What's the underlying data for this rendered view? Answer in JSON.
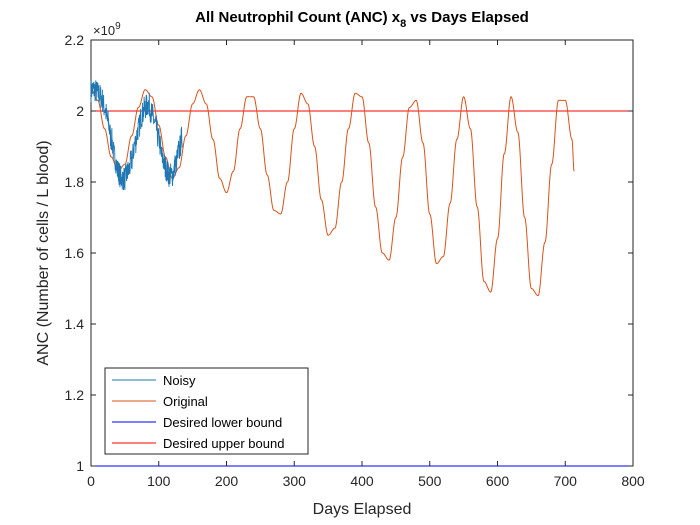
{
  "chart_data": {
    "type": "line",
    "title_main": "All Neutrophil Count (ANC) x",
    "title_sub": "8",
    "title_rest": " vs Days Elapsed",
    "xlabel": "Days Elapsed",
    "ylabel": "ANC (Number of cells / L blood)",
    "y_exponent_base": "×10",
    "y_exponent_power": "9",
    "xlim": [
      0,
      800
    ],
    "ylim": [
      1.0,
      2.2
    ],
    "xticks": [
      0,
      100,
      200,
      300,
      400,
      500,
      600,
      700,
      800
    ],
    "xtick_labels": [
      "0",
      "100",
      "200",
      "300",
      "400",
      "500",
      "600",
      "700",
      "800"
    ],
    "yticks": [
      1.0,
      1.2,
      1.4,
      1.6,
      1.8,
      2.0,
      2.2
    ],
    "ytick_labels": [
      "1",
      "1.2",
      "1.4",
      "1.6",
      "1.8",
      "2",
      "2.2"
    ],
    "grid": false,
    "legend_position": "bottom-left",
    "series": [
      {
        "name": "Noisy",
        "color": "#1f77b4",
        "x": [
          0,
          5,
          10,
          15,
          20,
          25,
          30,
          35,
          40,
          45,
          50,
          55,
          60,
          65,
          70,
          75,
          80,
          85,
          90,
          95,
          100,
          105,
          110,
          115,
          120,
          125,
          130,
          135
        ],
        "y": [
          2.06,
          2.06,
          2.05,
          2.04,
          2.01,
          1.97,
          1.92,
          1.87,
          1.83,
          1.81,
          1.81,
          1.83,
          1.86,
          1.91,
          1.95,
          1.99,
          2.01,
          2.02,
          1.99,
          1.96,
          1.92,
          1.87,
          1.84,
          1.82,
          1.82,
          1.85,
          1.89,
          1.93
        ],
        "noise": 0.035
      },
      {
        "name": "Original",
        "color": "#d95319",
        "x": [
          0,
          10,
          20,
          30,
          40,
          50,
          60,
          70,
          80,
          90,
          100,
          110,
          120,
          130,
          140,
          150,
          160,
          170,
          180,
          190,
          200,
          210,
          220,
          230,
          240,
          250,
          260,
          270,
          280,
          290,
          300,
          310,
          320,
          330,
          340,
          350,
          360,
          370,
          380,
          390,
          400,
          410,
          420,
          430,
          440,
          450,
          460,
          470,
          480,
          490,
          500,
          510,
          520,
          530,
          540,
          550,
          560,
          570,
          580,
          590,
          600,
          610,
          620,
          630,
          640,
          650,
          660,
          670,
          680,
          690,
          700,
          710,
          713
        ],
        "y": [
          2.06,
          2.03,
          1.95,
          1.87,
          1.83,
          1.85,
          1.93,
          2.01,
          2.06,
          2.04,
          1.96,
          1.87,
          1.81,
          1.84,
          1.93,
          2.02,
          2.06,
          2.02,
          1.92,
          1.81,
          1.77,
          1.83,
          1.95,
          2.04,
          2.04,
          1.95,
          1.82,
          1.72,
          1.71,
          1.8,
          1.95,
          2.05,
          2.02,
          1.9,
          1.75,
          1.65,
          1.67,
          1.8,
          1.95,
          2.05,
          2.04,
          1.91,
          1.73,
          1.6,
          1.58,
          1.7,
          1.87,
          2.01,
          2.03,
          1.91,
          1.71,
          1.57,
          1.59,
          1.74,
          1.92,
          2.04,
          1.95,
          1.73,
          1.52,
          1.49,
          1.64,
          1.88,
          2.04,
          1.94,
          1.7,
          1.5,
          1.48,
          1.63,
          1.85,
          2.03,
          2.03,
          1.92,
          1.83
        ]
      },
      {
        "name": "Desired lower bound",
        "color": "#0000ff",
        "x": [
          0,
          800
        ],
        "y": [
          1.0,
          1.0
        ]
      },
      {
        "name": "Desired upper bound",
        "color": "#ff0000",
        "x": [
          0,
          800
        ],
        "y": [
          2.0,
          2.0
        ]
      }
    ]
  }
}
